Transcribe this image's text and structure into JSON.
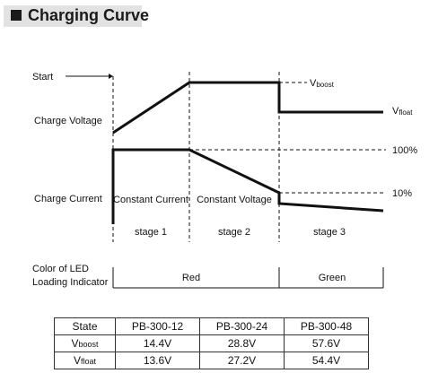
{
  "title": "Charging Curve",
  "labels": {
    "start": "Start",
    "charge_voltage": "Charge Voltage",
    "charge_current": "Charge Current",
    "v_boost_main": "V",
    "v_boost_sub": "boost",
    "v_float_main": "V",
    "v_float_sub": "float",
    "pct_100": "100%",
    "pct_10": "10%",
    "constant_current": "Constant Current",
    "constant_voltage": "Constant Voltage"
  },
  "stages": [
    "stage 1",
    "stage 2",
    "stage 3"
  ],
  "led": {
    "label_line1": "Color of LED",
    "label_line2": "Loading Indicator",
    "red": "Red",
    "green": "Green"
  },
  "table": {
    "header": [
      "State",
      "PB-300-12",
      "PB-300-24",
      "PB-300-48"
    ],
    "rows": [
      {
        "state_main": "V",
        "state_sub": "boost",
        "values": [
          "14.4V",
          "28.8V",
          "57.6V"
        ]
      },
      {
        "state_main": "V",
        "state_sub": "float",
        "values": [
          "13.6V",
          "27.2V",
          "54.4V"
        ]
      }
    ]
  }
}
